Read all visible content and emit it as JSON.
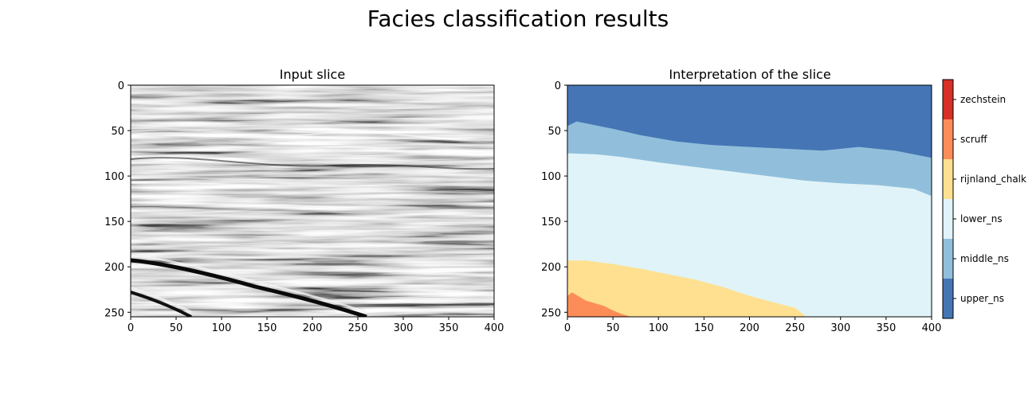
{
  "figure": {
    "suptitle": "Facies classification results"
  },
  "chart_data": [
    {
      "type": "heatmap",
      "title": "Input slice",
      "xlabel": "",
      "ylabel": "",
      "xlim": [
        0,
        400
      ],
      "ylim": [
        255,
        0
      ],
      "x_ticks": [
        0,
        50,
        100,
        150,
        200,
        250,
        300,
        350,
        400
      ],
      "y_ticks": [
        0,
        50,
        100,
        150,
        200,
        250
      ],
      "colormap": "gray",
      "grid": false
    },
    {
      "type": "heatmap",
      "title": "Interpretation of the slice",
      "xlabel": "",
      "ylabel": "",
      "xlim": [
        0,
        400
      ],
      "ylim": [
        255,
        0
      ],
      "x_ticks": [
        0,
        50,
        100,
        150,
        200,
        250,
        300,
        350,
        400
      ],
      "y_ticks": [
        0,
        50,
        100,
        150,
        200,
        250
      ],
      "grid": false,
      "classes": [
        {
          "name": "upper_ns",
          "color": "#4575b4"
        },
        {
          "name": "middle_ns",
          "color": "#91bfdb"
        },
        {
          "name": "lower_ns",
          "color": "#e0f3f8"
        },
        {
          "name": "rijnland_chalk",
          "color": "#fee090"
        },
        {
          "name": "scruff",
          "color": "#fc8d59"
        },
        {
          "name": "zechstein",
          "color": "#d73027"
        }
      ],
      "boundaries": [
        {
          "above": "upper_ns",
          "below": "middle_ns",
          "x": [
            0,
            10,
            20,
            50,
            80,
            120,
            160,
            200,
            240,
            280,
            320,
            360,
            400
          ],
          "y": [
            45,
            40,
            42,
            48,
            55,
            62,
            66,
            68,
            70,
            72,
            68,
            72,
            80
          ]
        },
        {
          "above": "middle_ns",
          "below": "lower_ns",
          "x": [
            0,
            30,
            60,
            100,
            140,
            180,
            220,
            260,
            300,
            340,
            380,
            400
          ],
          "y": [
            75,
            76,
            79,
            85,
            90,
            95,
            100,
            105,
            108,
            110,
            114,
            122
          ]
        },
        {
          "above": "lower_ns",
          "below": "rijnland_chalk",
          "x": [
            0,
            20,
            50,
            80,
            110,
            140,
            170,
            200,
            230,
            250,
            262
          ],
          "y": [
            193,
            193,
            197,
            202,
            208,
            214,
            222,
            232,
            240,
            245,
            255
          ]
        },
        {
          "above": "rijnland_chalk",
          "below": "scruff",
          "x": [
            0,
            5,
            20,
            40,
            50,
            60,
            70
          ],
          "y": [
            232,
            228,
            237,
            243,
            248,
            252,
            255
          ]
        }
      ]
    }
  ]
}
